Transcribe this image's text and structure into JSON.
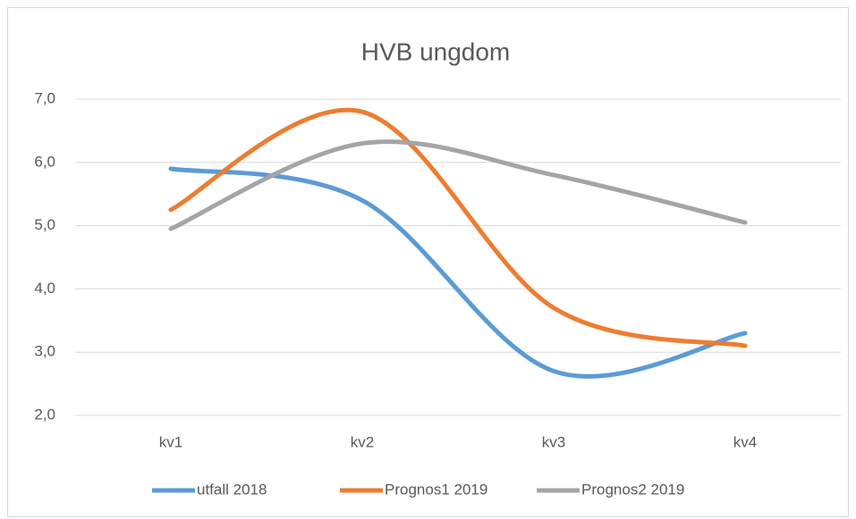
{
  "chart_data": {
    "type": "line",
    "title": "HVB ungdom",
    "categories": [
      "kv1",
      "kv2",
      "kv3",
      "kv4"
    ],
    "series": [
      {
        "name": "utfall 2018",
        "color": "#5b9bd5",
        "values": [
          5.9,
          5.4,
          2.7,
          3.3
        ]
      },
      {
        "name": "Prognos1 2019",
        "color": "#ed7d31",
        "values": [
          5.25,
          6.8,
          3.7,
          3.1
        ]
      },
      {
        "name": "Prognos2 2019",
        "color": "#a5a5a5",
        "values": [
          4.95,
          6.3,
          5.8,
          5.05
        ]
      }
    ],
    "ylim": [
      2,
      7
    ],
    "yticks": [
      {
        "value": 2,
        "label": "2,0"
      },
      {
        "value": 3,
        "label": "3,0"
      },
      {
        "value": 4,
        "label": "4,0"
      },
      {
        "value": 5,
        "label": "5,0"
      },
      {
        "value": 6,
        "label": "6,0"
      },
      {
        "value": 7,
        "label": "7,0"
      }
    ],
    "grid": true,
    "smooth": true,
    "legend": "bottom"
  }
}
